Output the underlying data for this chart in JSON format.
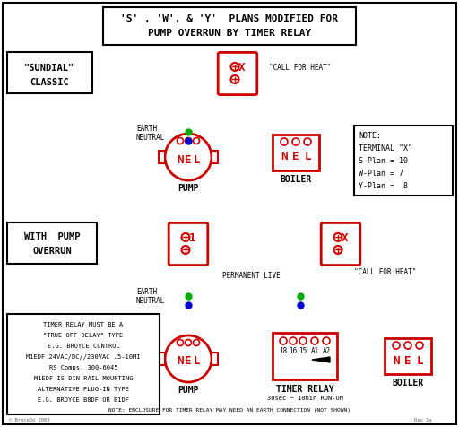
{
  "title_line1": "'S' , 'W', & 'Y'  PLANS MODIFIED FOR",
  "title_line2": "PUMP OVERRUN BY TIMER RELAY",
  "bg_color": "#ffffff",
  "red": "#cc0000",
  "brown": "#7B4A10",
  "green": "#00aa00",
  "blue": "#0000cc",
  "black": "#000000",
  "gray": "#666666",
  "note_lines": [
    "TIMER RELAY MUST BE A",
    "\"TRUE OFF DELAY\" TYPE",
    "E.G. BROYCE CONTROL",
    "M1EDF 24VAC/DC//230VAC .5-10MI",
    "RS Comps. 300-6045",
    "M1EDF IS DIN RAIL MOUNTING",
    "ALTERNATIVE PLUG-IN TYPE",
    "E.G. BROYCE B8DF OR B1DF"
  ],
  "note_right": [
    "NOTE:",
    "TERMINAL \"X\"",
    "S-Plan = 10",
    "W-Plan = 7",
    "Y-Plan =  8"
  ]
}
